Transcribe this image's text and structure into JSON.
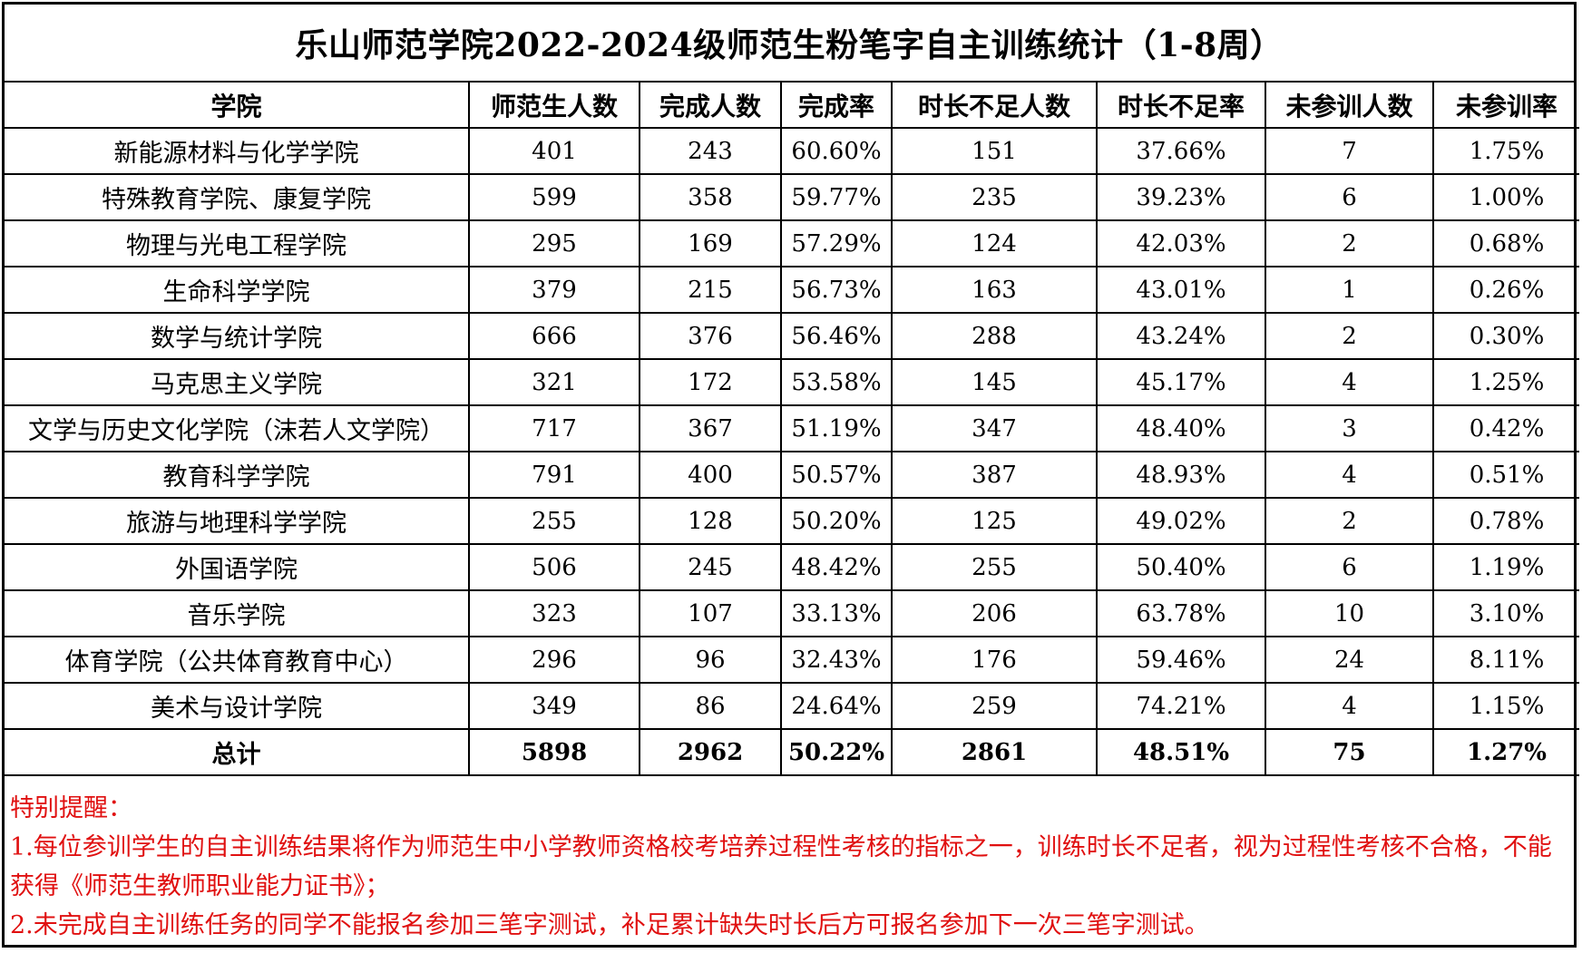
{
  "title": "乐山师范学院2022-2024级师范生粉笔字自主训练统计（1-8周）",
  "headers": [
    "学院",
    "师范生人数",
    "完成人数",
    "完成率",
    "时长不足人数",
    "时长不足率",
    "未参训人数",
    "未参训率"
  ],
  "rows": [
    [
      "新能源材料与化学学院",
      "401",
      "243",
      "60.60%",
      "151",
      "37.66%",
      "7",
      "1.75%"
    ],
    [
      "特殊教育学院、康复学院",
      "599",
      "358",
      "59.77%",
      "235",
      "39.23%",
      "6",
      "1.00%"
    ],
    [
      "物理与光电工程学院",
      "295",
      "169",
      "57.29%",
      "124",
      "42.03%",
      "2",
      "0.68%"
    ],
    [
      "生命科学学院",
      "379",
      "215",
      "56.73%",
      "163",
      "43.01%",
      "1",
      "0.26%"
    ],
    [
      "数学与统计学院",
      "666",
      "376",
      "56.46%",
      "288",
      "43.24%",
      "2",
      "0.30%"
    ],
    [
      "马克思主义学院",
      "321",
      "172",
      "53.58%",
      "145",
      "45.17%",
      "4",
      "1.25%"
    ],
    [
      "文学与历史文化学院（沫若人文学院）",
      "717",
      "367",
      "51.19%",
      "347",
      "48.40%",
      "3",
      "0.42%"
    ],
    [
      "教育科学学院",
      "791",
      "400",
      "50.57%",
      "387",
      "48.93%",
      "4",
      "0.51%"
    ],
    [
      "旅游与地理科学学院",
      "255",
      "128",
      "50.20%",
      "125",
      "49.02%",
      "2",
      "0.78%"
    ],
    [
      "外国语学院",
      "506",
      "245",
      "48.42%",
      "255",
      "50.40%",
      "6",
      "1.19%"
    ],
    [
      "音乐学院",
      "323",
      "107",
      "33.13%",
      "206",
      "63.78%",
      "10",
      "3.10%"
    ],
    [
      "体育学院（公共体育教育中心）",
      "296",
      "96",
      "32.43%",
      "176",
      "59.46%",
      "24",
      "8.11%"
    ],
    [
      "美术与设计学院",
      "349",
      "86",
      "24.64%",
      "259",
      "74.21%",
      "4",
      "1.15%"
    ]
  ],
  "total": [
    "总计",
    "5898",
    "2962",
    "50.22%",
    "2861",
    "48.51%",
    "75",
    "1.27%"
  ],
  "notes": {
    "heading": "特别提醒：",
    "item1": "1.每位参训学生的自主训练结果将作为师范生中小学教师资格校考培养过程性考核的指标之一，训练时长不足者，视为过程性考核不合格，不能获得《师范生教师职业能力证书》；",
    "item2": "2.未完成自主训练任务的同学不能报名参加三笔字测试，补足累计缺失时长后方可报名参加下一次三笔字测试。"
  },
  "colors": {
    "note_text": "#e01010",
    "border": "#000000"
  }
}
